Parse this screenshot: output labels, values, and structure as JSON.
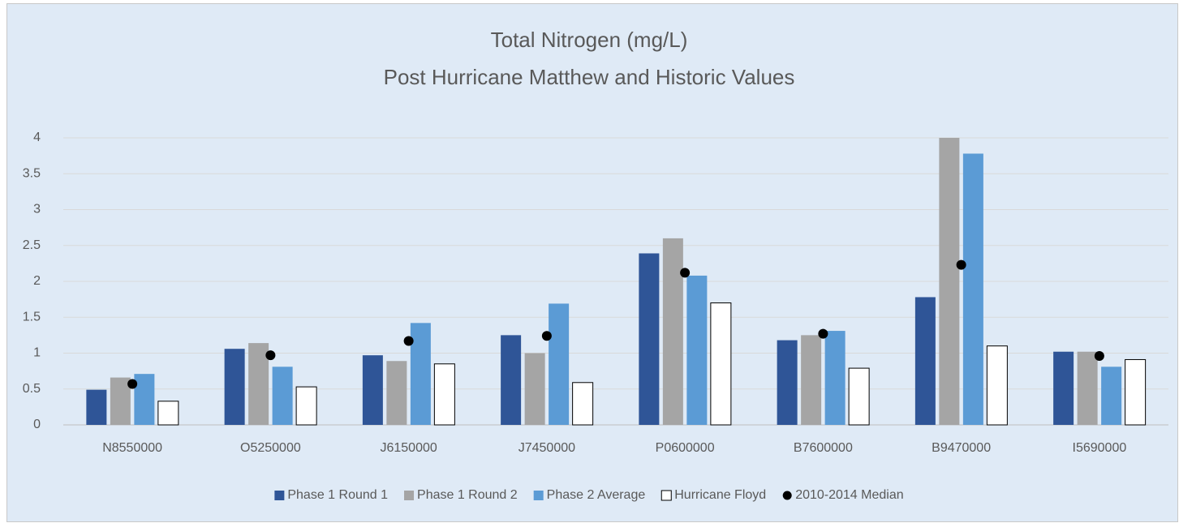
{
  "chart_data": {
    "type": "bar",
    "title": "Total Nitrogen (mg/L)",
    "subtitle": "Post Hurricane Matthew and Historic Values",
    "categories": [
      "N8550000",
      "O5250000",
      "J6150000",
      "J7450000",
      "P0600000",
      "B7600000",
      "B9470000",
      "I5690000"
    ],
    "series": [
      {
        "name": "Phase 1 Round 1",
        "color": "#2f5597",
        "values": [
          0.49,
          1.06,
          0.97,
          1.25,
          2.39,
          1.18,
          1.78,
          1.02
        ]
      },
      {
        "name": "Phase 1 Round 2",
        "color": "#a5a5a5",
        "values": [
          0.66,
          1.14,
          0.89,
          1.0,
          2.6,
          1.25,
          4.0,
          1.02
        ]
      },
      {
        "name": "Phase 2 Average",
        "color": "#5b9bd5",
        "values": [
          0.71,
          0.81,
          1.42,
          1.69,
          2.08,
          1.31,
          3.78,
          0.81
        ]
      },
      {
        "name": "Hurricane Floyd",
        "color": "#ffffff",
        "values": [
          0.33,
          0.53,
          0.85,
          0.59,
          1.7,
          0.79,
          1.1,
          0.91
        ]
      },
      {
        "name": "2010-2014 Median",
        "color": "#000000",
        "type": "scatter",
        "values": [
          0.57,
          0.97,
          1.17,
          1.24,
          2.12,
          1.27,
          2.23,
          0.96
        ]
      }
    ],
    "ylim": [
      0,
      4
    ],
    "yticks": [
      0,
      0.5,
      1,
      1.5,
      2,
      2.5,
      3,
      3.5,
      4
    ],
    "grid": true,
    "legend": "bottom"
  }
}
